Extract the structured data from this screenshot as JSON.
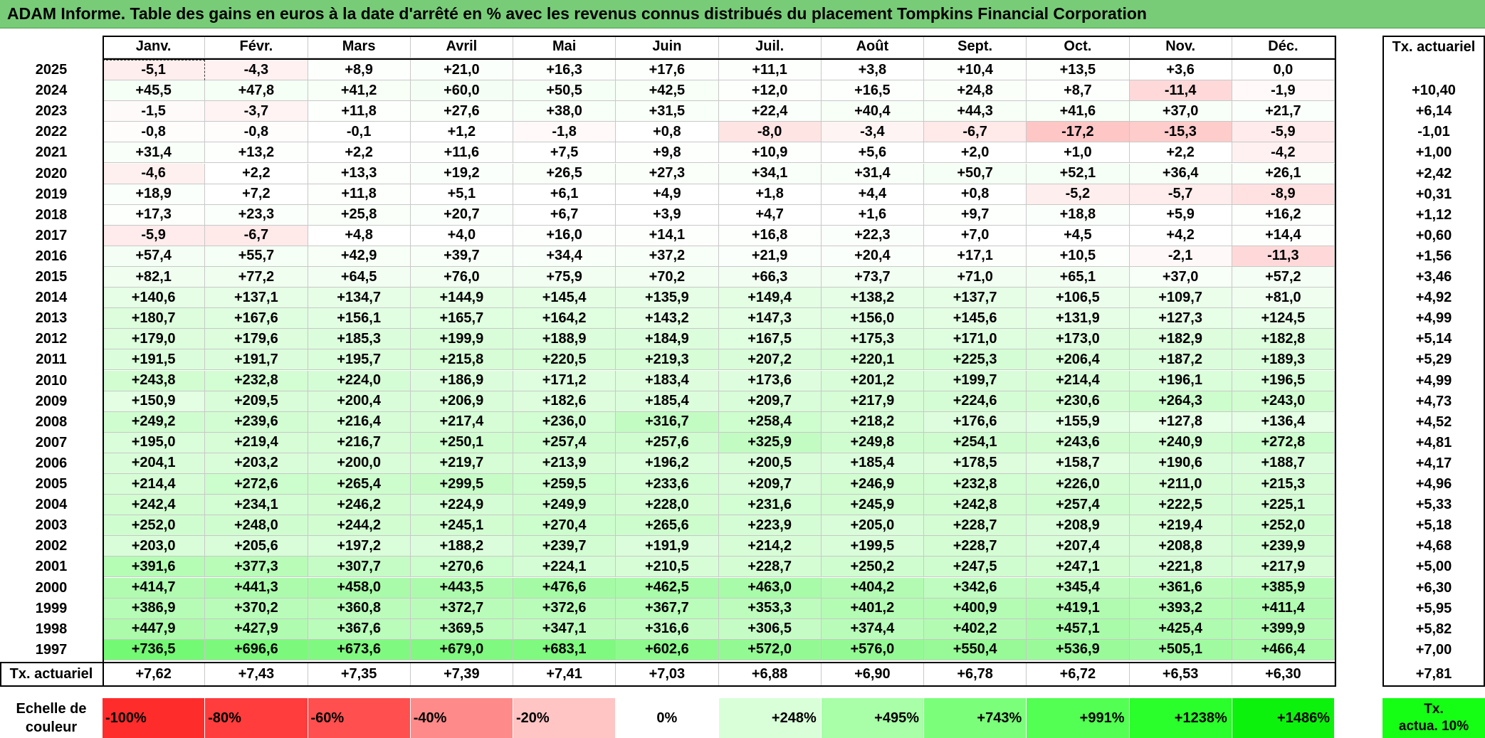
{
  "title": "ADAM Informe. Table des gains en euros à la date d'arrêté en % avec les revenus connus distribués du placement Tompkins Financial Corporation",
  "chart_data": {
    "type": "heatmap",
    "title": "ADAM Informe. Table des gains en euros à la date d'arrêté en % avec les revenus connus distribués du placement Tompkins Financial Corporation",
    "months": [
      "Janv.",
      "Févr.",
      "Mars",
      "Avril",
      "Mai",
      "Juin",
      "Juil.",
      "Août",
      "Sept.",
      "Oct.",
      "Nov.",
      "Déc."
    ],
    "right_header": "Tx. actuariel",
    "rows": [
      {
        "year": "2025",
        "values": [
          "-5,1",
          "-4,3",
          "+8,9",
          "+21,0",
          "+16,3",
          "+17,6",
          "+11,1",
          "+3,8",
          "+10,4",
          "+13,5",
          "+3,6",
          "0,0"
        ],
        "rate": ""
      },
      {
        "year": "2024",
        "values": [
          "+45,5",
          "+47,8",
          "+41,2",
          "+60,0",
          "+50,5",
          "+42,5",
          "+12,0",
          "+16,5",
          "+24,8",
          "+8,7",
          "-11,4",
          "-1,9"
        ],
        "rate": "+10,40"
      },
      {
        "year": "2023",
        "values": [
          "-1,5",
          "-3,7",
          "+11,8",
          "+27,6",
          "+38,0",
          "+31,5",
          "+22,4",
          "+40,4",
          "+44,3",
          "+41,6",
          "+37,0",
          "+21,7"
        ],
        "rate": "+6,14"
      },
      {
        "year": "2022",
        "values": [
          "-0,8",
          "-0,8",
          "-0,1",
          "+1,2",
          "-1,8",
          "+0,8",
          "-8,0",
          "-3,4",
          "-6,7",
          "-17,2",
          "-15,3",
          "-5,9"
        ],
        "rate": "-1,01"
      },
      {
        "year": "2021",
        "values": [
          "+31,4",
          "+13,2",
          "+2,2",
          "+11,6",
          "+7,5",
          "+9,8",
          "+10,9",
          "+5,6",
          "+2,0",
          "+1,0",
          "+2,2",
          "-4,2"
        ],
        "rate": "+1,00"
      },
      {
        "year": "2020",
        "values": [
          "-4,6",
          "+2,2",
          "+13,3",
          "+19,2",
          "+26,5",
          "+27,3",
          "+34,1",
          "+31,4",
          "+50,7",
          "+52,1",
          "+36,4",
          "+26,1"
        ],
        "rate": "+2,42"
      },
      {
        "year": "2019",
        "values": [
          "+18,9",
          "+7,2",
          "+11,8",
          "+5,1",
          "+6,1",
          "+4,9",
          "+1,8",
          "+4,4",
          "+0,8",
          "-5,2",
          "-5,7",
          "-8,9"
        ],
        "rate": "+0,31"
      },
      {
        "year": "2018",
        "values": [
          "+17,3",
          "+23,3",
          "+25,8",
          "+20,7",
          "+6,7",
          "+3,9",
          "+4,7",
          "+1,6",
          "+9,7",
          "+18,8",
          "+5,9",
          "+16,2"
        ],
        "rate": "+1,12"
      },
      {
        "year": "2017",
        "values": [
          "-5,9",
          "-6,7",
          "+4,8",
          "+4,0",
          "+16,0",
          "+14,1",
          "+16,8",
          "+22,3",
          "+7,0",
          "+4,5",
          "+4,2",
          "+14,4"
        ],
        "rate": "+0,60"
      },
      {
        "year": "2016",
        "values": [
          "+57,4",
          "+55,7",
          "+42,9",
          "+39,7",
          "+34,4",
          "+37,2",
          "+21,9",
          "+20,4",
          "+17,1",
          "+10,5",
          "-2,1",
          "-11,3"
        ],
        "rate": "+1,56"
      },
      {
        "year": "2015",
        "values": [
          "+82,1",
          "+77,2",
          "+64,5",
          "+76,0",
          "+75,9",
          "+70,2",
          "+66,3",
          "+73,7",
          "+71,0",
          "+65,1",
          "+37,0",
          "+57,2"
        ],
        "rate": "+3,46"
      },
      {
        "year": "2014",
        "values": [
          "+140,6",
          "+137,1",
          "+134,7",
          "+144,9",
          "+145,4",
          "+135,9",
          "+149,4",
          "+138,2",
          "+137,7",
          "+106,5",
          "+109,7",
          "+81,0"
        ],
        "rate": "+4,92"
      },
      {
        "year": "2013",
        "values": [
          "+180,7",
          "+167,6",
          "+156,1",
          "+165,7",
          "+164,2",
          "+143,2",
          "+147,3",
          "+156,0",
          "+145,6",
          "+131,9",
          "+127,3",
          "+124,5"
        ],
        "rate": "+4,99"
      },
      {
        "year": "2012",
        "values": [
          "+179,0",
          "+179,6",
          "+185,3",
          "+199,9",
          "+188,9",
          "+184,9",
          "+167,5",
          "+175,3",
          "+171,0",
          "+173,0",
          "+182,9",
          "+182,8"
        ],
        "rate": "+5,14"
      },
      {
        "year": "2011",
        "values": [
          "+191,5",
          "+191,7",
          "+195,7",
          "+215,8",
          "+220,5",
          "+219,3",
          "+207,2",
          "+220,1",
          "+225,3",
          "+206,4",
          "+187,2",
          "+189,3"
        ],
        "rate": "+5,29"
      },
      {
        "year": "2010",
        "values": [
          "+243,8",
          "+232,8",
          "+224,0",
          "+186,9",
          "+171,2",
          "+183,4",
          "+173,6",
          "+201,2",
          "+199,7",
          "+214,4",
          "+196,1",
          "+196,5"
        ],
        "rate": "+4,99"
      },
      {
        "year": "2009",
        "values": [
          "+150,9",
          "+209,5",
          "+200,4",
          "+206,9",
          "+182,6",
          "+185,4",
          "+209,7",
          "+217,9",
          "+224,6",
          "+230,6",
          "+264,3",
          "+243,0"
        ],
        "rate": "+4,73"
      },
      {
        "year": "2008",
        "values": [
          "+249,2",
          "+239,6",
          "+216,4",
          "+217,4",
          "+236,0",
          "+316,7",
          "+258,4",
          "+218,2",
          "+176,6",
          "+155,9",
          "+127,8",
          "+136,4"
        ],
        "rate": "+4,52"
      },
      {
        "year": "2007",
        "values": [
          "+195,0",
          "+219,4",
          "+216,7",
          "+250,1",
          "+257,4",
          "+257,6",
          "+325,9",
          "+249,8",
          "+254,1",
          "+243,6",
          "+240,9",
          "+272,8"
        ],
        "rate": "+4,81"
      },
      {
        "year": "2006",
        "values": [
          "+204,1",
          "+203,2",
          "+200,0",
          "+219,7",
          "+213,9",
          "+196,2",
          "+200,5",
          "+185,4",
          "+178,5",
          "+158,7",
          "+190,6",
          "+188,7"
        ],
        "rate": "+4,17"
      },
      {
        "year": "2005",
        "values": [
          "+214,4",
          "+272,6",
          "+265,4",
          "+299,5",
          "+259,5",
          "+233,6",
          "+209,7",
          "+246,9",
          "+232,8",
          "+226,0",
          "+211,0",
          "+215,3"
        ],
        "rate": "+4,96"
      },
      {
        "year": "2004",
        "values": [
          "+242,4",
          "+234,1",
          "+246,2",
          "+224,9",
          "+249,9",
          "+228,0",
          "+231,6",
          "+245,9",
          "+242,8",
          "+257,4",
          "+222,5",
          "+225,1"
        ],
        "rate": "+5,33"
      },
      {
        "year": "2003",
        "values": [
          "+252,0",
          "+248,0",
          "+244,2",
          "+245,1",
          "+270,4",
          "+265,6",
          "+223,9",
          "+205,0",
          "+228,7",
          "+208,9",
          "+219,4",
          "+252,0"
        ],
        "rate": "+5,18"
      },
      {
        "year": "2002",
        "values": [
          "+203,0",
          "+205,6",
          "+197,2",
          "+188,2",
          "+239,7",
          "+191,9",
          "+214,2",
          "+199,5",
          "+228,7",
          "+207,4",
          "+208,8",
          "+239,9"
        ],
        "rate": "+4,68"
      },
      {
        "year": "2001",
        "values": [
          "+391,6",
          "+377,3",
          "+307,7",
          "+270,6",
          "+224,1",
          "+210,5",
          "+228,7",
          "+250,2",
          "+247,5",
          "+247,1",
          "+221,8",
          "+217,9"
        ],
        "rate": "+5,00"
      },
      {
        "year": "2000",
        "values": [
          "+414,7",
          "+441,3",
          "+458,0",
          "+443,5",
          "+476,6",
          "+462,5",
          "+463,0",
          "+404,2",
          "+342,6",
          "+345,4",
          "+361,6",
          "+385,9"
        ],
        "rate": "+6,30"
      },
      {
        "year": "1999",
        "values": [
          "+386,9",
          "+370,2",
          "+360,8",
          "+372,7",
          "+372,6",
          "+367,7",
          "+353,3",
          "+401,2",
          "+400,9",
          "+419,1",
          "+393,2",
          "+411,4"
        ],
        "rate": "+5,95"
      },
      {
        "year": "1998",
        "values": [
          "+447,9",
          "+427,9",
          "+367,6",
          "+369,5",
          "+347,1",
          "+316,6",
          "+306,5",
          "+374,4",
          "+402,2",
          "+457,1",
          "+425,4",
          "+399,9"
        ],
        "rate": "+5,82"
      },
      {
        "year": "1997",
        "values": [
          "+736,5",
          "+696,6",
          "+673,6",
          "+679,0",
          "+683,1",
          "+602,6",
          "+572,0",
          "+576,0",
          "+550,4",
          "+536,9",
          "+505,1",
          "+466,4"
        ],
        "rate": "+7,00"
      }
    ],
    "footer": {
      "label": "Tx. actuariel",
      "values": [
        "+7,62",
        "+7,43",
        "+7,35",
        "+7,39",
        "+7,41",
        "+7,03",
        "+6,88",
        "+6,90",
        "+6,78",
        "+6,72",
        "+6,53",
        "+6,30"
      ],
      "total": "+7,81"
    },
    "scale": {
      "label_line1": "Echelle de",
      "label_line2": "couleur",
      "steps": [
        {
          "label": "-100%",
          "color": "#ff2c2c"
        },
        {
          "label": "-80%",
          "color": "#ff3d3d"
        },
        {
          "label": "-60%",
          "color": "#ff4f4f"
        },
        {
          "label": "-40%",
          "color": "#ff8a8a"
        },
        {
          "label": "-20%",
          "color": "#ffc4c4"
        },
        {
          "label": "0%",
          "color": "#ffffff"
        },
        {
          "label": "+248%",
          "color": "#d9ffd9"
        },
        {
          "label": "+495%",
          "color": "#a8ffa8"
        },
        {
          "label": "+743%",
          "color": "#7bff7b"
        },
        {
          "label": "+991%",
          "color": "#52ff52"
        },
        {
          "label": "+1238%",
          "color": "#2bff2b"
        },
        {
          "label": "+1486%",
          "color": "#0cf20c"
        }
      ],
      "reference_line1": "Tx.",
      "reference_line2": "actua. 10%"
    },
    "colors": {
      "negative_max": "#ff2c2c",
      "zero": "#ffffff",
      "positive_max": "#0cf20c",
      "title_bar": "#78cc78"
    }
  }
}
